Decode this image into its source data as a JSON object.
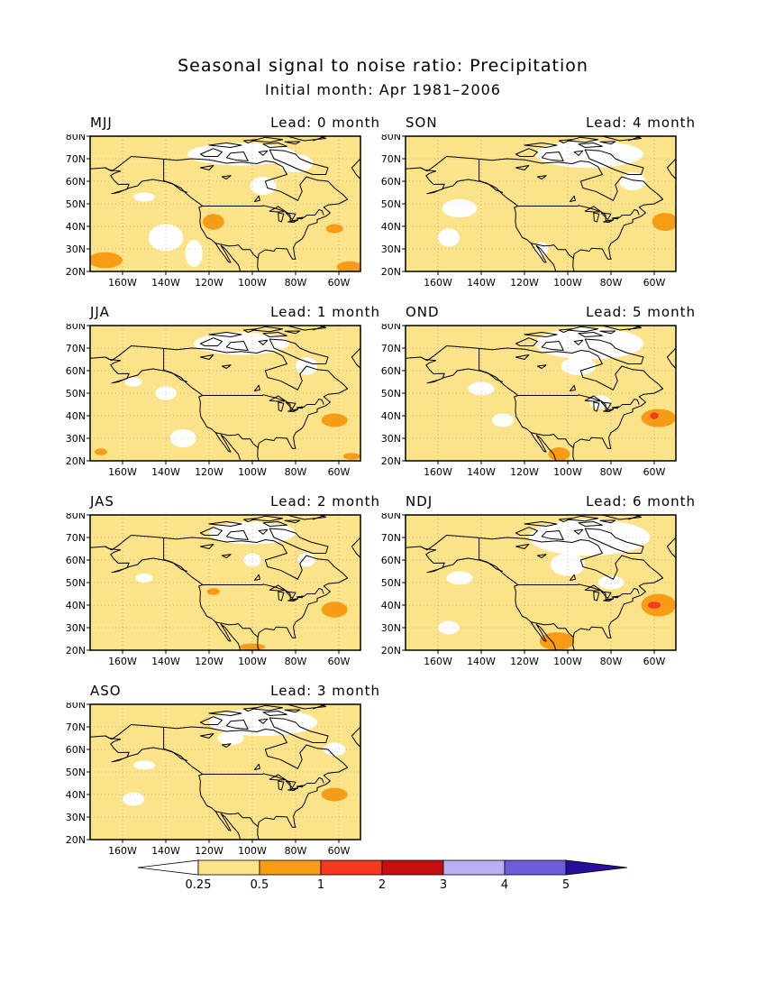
{
  "title": "Seasonal signal to noise ratio: Precipitation",
  "subtitle": "Initial month: Apr 1981–2006",
  "colors": {
    "background": "#ffffff",
    "frame": "#000000",
    "grid": "#999999",
    "level_0": "#ffffff",
    "level_1": "#fbe389",
    "level_2": "#f79c14",
    "level_3": "#f5391e",
    "level_4": "#c40f0f",
    "level_5": "#b8b0f5",
    "level_6": "#6c5edb",
    "level_7": "#2a0d9c",
    "coastline": "#000000"
  },
  "map_axes": {
    "lon_labels": [
      "160W",
      "140W",
      "120W",
      "100W",
      "80W",
      "60W"
    ],
    "lat_labels": [
      "20N",
      "30N",
      "40N",
      "50N",
      "60N",
      "70N",
      "80N"
    ]
  },
  "panels": [
    {
      "season": "MJJ",
      "lead": "Lead: 0 month",
      "dominant": "0.25–0.5",
      "hotspots": [
        "SW US",
        "subtropical E Pacific"
      ]
    },
    {
      "season": "JJA",
      "lead": "Lead: 1 month",
      "dominant": "0.25–0.5",
      "hotspots": [
        "W Atlantic"
      ]
    },
    {
      "season": "JAS",
      "lead": "Lead: 2 month",
      "dominant": "0.25–0.5",
      "hotspots": [
        "W Atlantic"
      ]
    },
    {
      "season": "ASO",
      "lead": "Lead: 3 month",
      "dominant": "0.25–0.5",
      "hotspots": [
        "W Atlantic"
      ]
    },
    {
      "season": "SON",
      "lead": "Lead: 4 month",
      "dominant": "0.25–0.5",
      "hotspots": [
        "W Atlantic"
      ]
    },
    {
      "season": "OND",
      "lead": "Lead: 5 month",
      "dominant": "0.25–0.5",
      "hotspots": [
        "W Atlantic",
        "Mexico"
      ]
    },
    {
      "season": "NDJ",
      "lead": "Lead: 6 month",
      "dominant": "0.25–0.5",
      "hotspots": [
        "W Atlantic",
        "Mexico"
      ]
    }
  ],
  "colorbar": {
    "labels": [
      "0.25",
      "0.5",
      "1",
      "2",
      "3",
      "4",
      "5"
    ]
  }
}
